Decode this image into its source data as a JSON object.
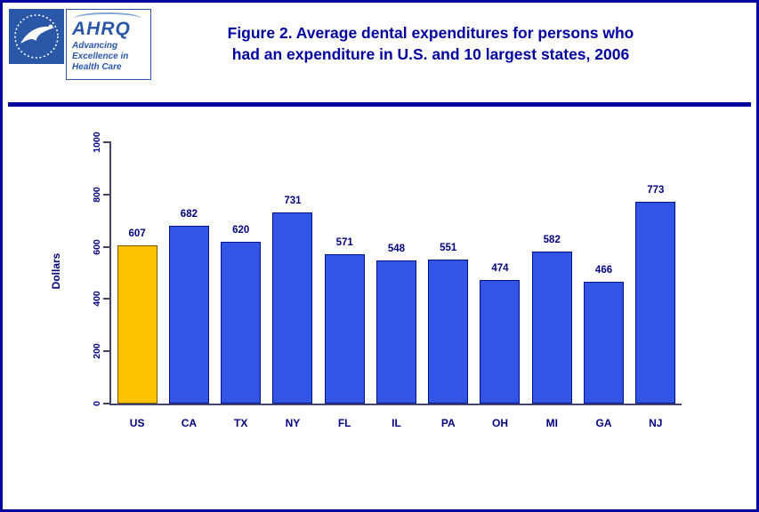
{
  "page": {
    "title_line1": "Figure 2. Average dental expenditures for persons who",
    "title_line2": "had an expenditure in U.S. and 10 largest states, 2006"
  },
  "logos": {
    "ahrq_acronym": "AHRQ",
    "tagline": [
      "Advancing",
      "Excellence in",
      "Health Care"
    ]
  },
  "colors": {
    "frame_blue": "#0000A0",
    "title_blue": "#0000A0",
    "label_navy": "#000080",
    "logo_blue": "#2B57A8"
  },
  "chart_data": {
    "type": "bar",
    "title": "Figure 2. Average dental expenditures for persons who had an expenditure in U.S. and 10 largest states, 2006",
    "categories": [
      "US",
      "CA",
      "TX",
      "NY",
      "FL",
      "IL",
      "PA",
      "OH",
      "MI",
      "GA",
      "NJ"
    ],
    "values": [
      607,
      682,
      620,
      731,
      571,
      548,
      551,
      474,
      582,
      466,
      773
    ],
    "xlabel": "",
    "ylabel": "Dollars",
    "ylim": [
      0,
      1000
    ],
    "yticks": [
      0,
      200,
      400,
      600,
      800,
      1000
    ],
    "grid": false,
    "legend": "none",
    "value_labels": true,
    "highlight_category": "US",
    "colors": {
      "bar_fill": "#3355E6",
      "bar_border": "#001489",
      "highlight_fill": "#FFC200",
      "highlight_border": "#7A5B00",
      "label": "#000080"
    }
  }
}
